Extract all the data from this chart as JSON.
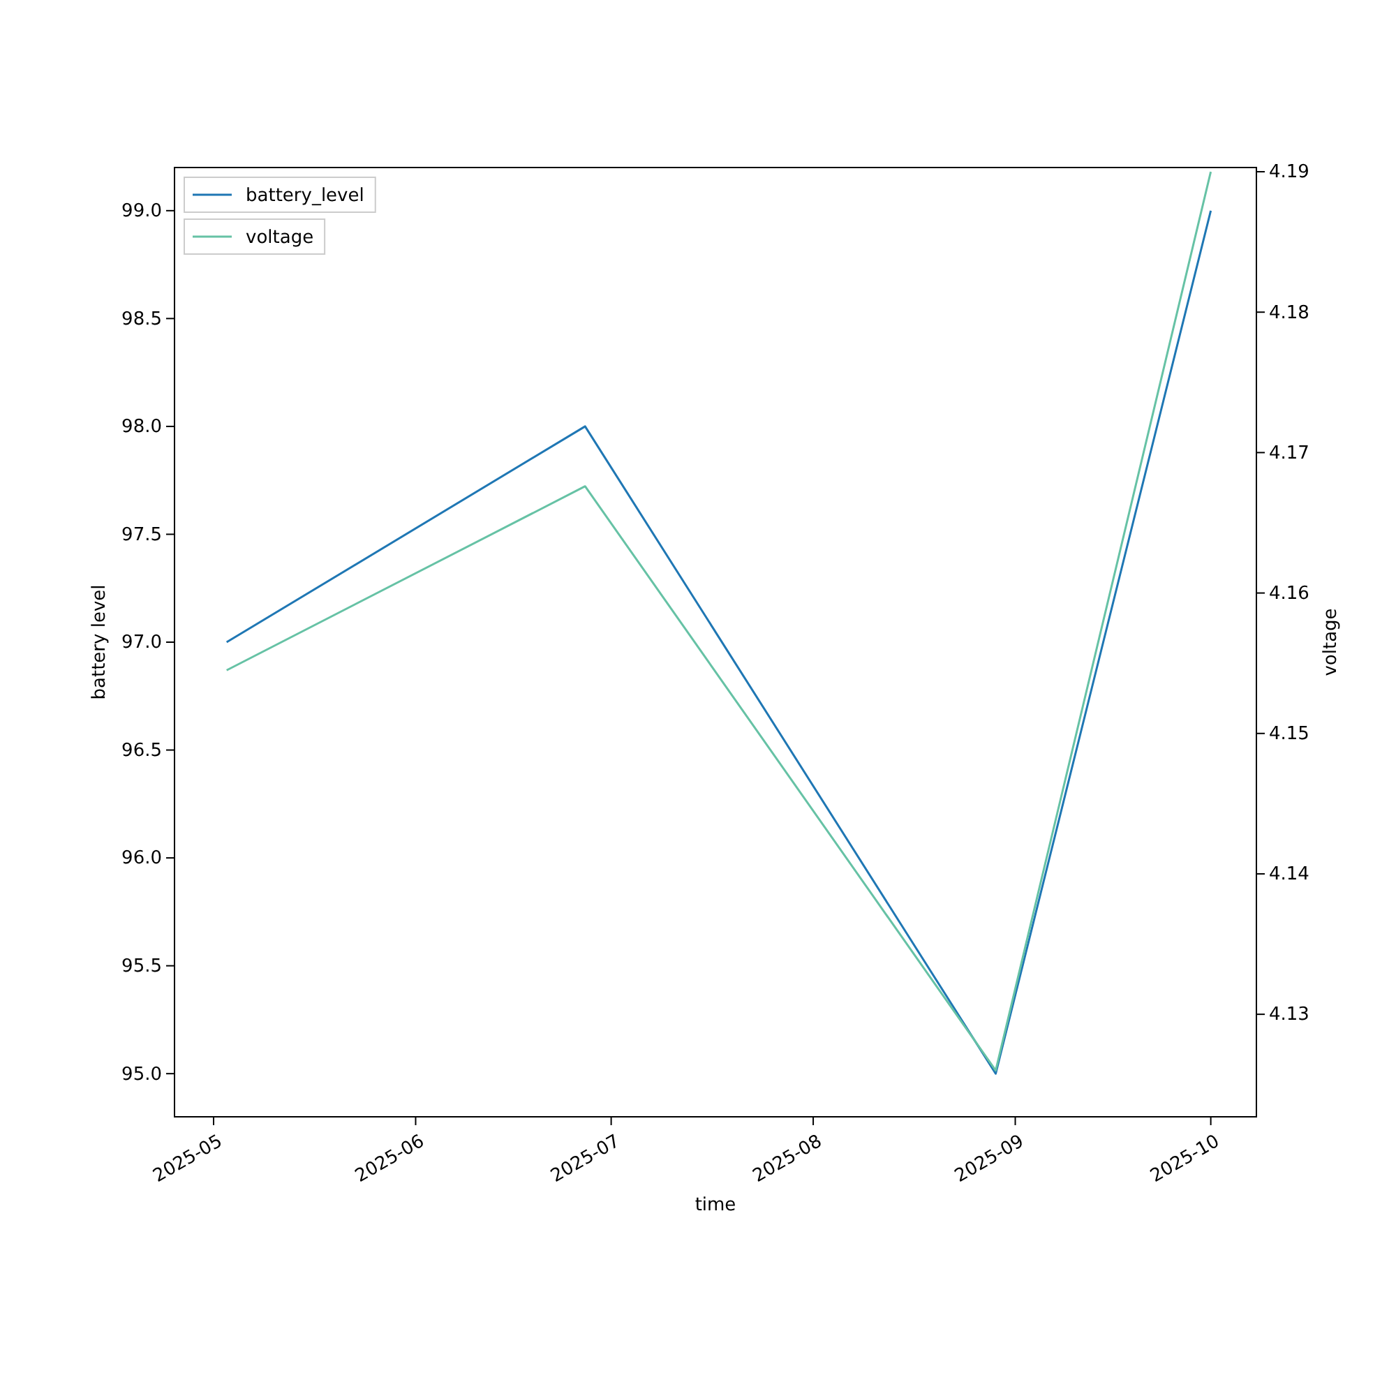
{
  "chart_data": {
    "type": "line",
    "xlabel": "time",
    "ylabel": "battery level",
    "y2label": "voltage",
    "x": [
      "2025-05-03",
      "2025-06-27",
      "2025-08-29",
      "2025-10-01"
    ],
    "series": [
      {
        "name": "battery_level",
        "color": "#1f77b4",
        "values": [
          97.0,
          98.0,
          95.0,
          99.0
        ]
      },
      {
        "name": "voltage",
        "color": "#66c2a5",
        "axis": "y2",
        "values": [
          4.1545,
          4.1676,
          4.126,
          4.19
        ]
      }
    ],
    "xlim": [
      "2025-04-25",
      "2025-10-08"
    ],
    "xticks": [
      {
        "value": "2025-05-01",
        "label": "2025-05"
      },
      {
        "value": "2025-06-01",
        "label": "2025-06"
      },
      {
        "value": "2025-07-01",
        "label": "2025-07"
      },
      {
        "value": "2025-08-01",
        "label": "2025-08"
      },
      {
        "value": "2025-09-01",
        "label": "2025-09"
      },
      {
        "value": "2025-10-01",
        "label": "2025-10"
      }
    ],
    "ylim": [
      94.8,
      99.2
    ],
    "yticks": [
      {
        "value": 95,
        "label": "95.0"
      },
      {
        "value": 95.5,
        "label": "95.5"
      },
      {
        "value": 96,
        "label": "96.0"
      },
      {
        "value": 96.5,
        "label": "96.5"
      },
      {
        "value": 97,
        "label": "97.0"
      },
      {
        "value": 97.5,
        "label": "97.5"
      },
      {
        "value": 98,
        "label": "98.0"
      },
      {
        "value": 98.5,
        "label": "98.5"
      },
      {
        "value": 99,
        "label": "99.0"
      }
    ],
    "y2lim": [
      4.1227,
      4.1903
    ],
    "y2ticks": [
      4.13,
      4.14,
      4.15,
      4.16,
      4.17,
      4.18,
      4.19
    ],
    "legend": "top left",
    "grid": false
  }
}
